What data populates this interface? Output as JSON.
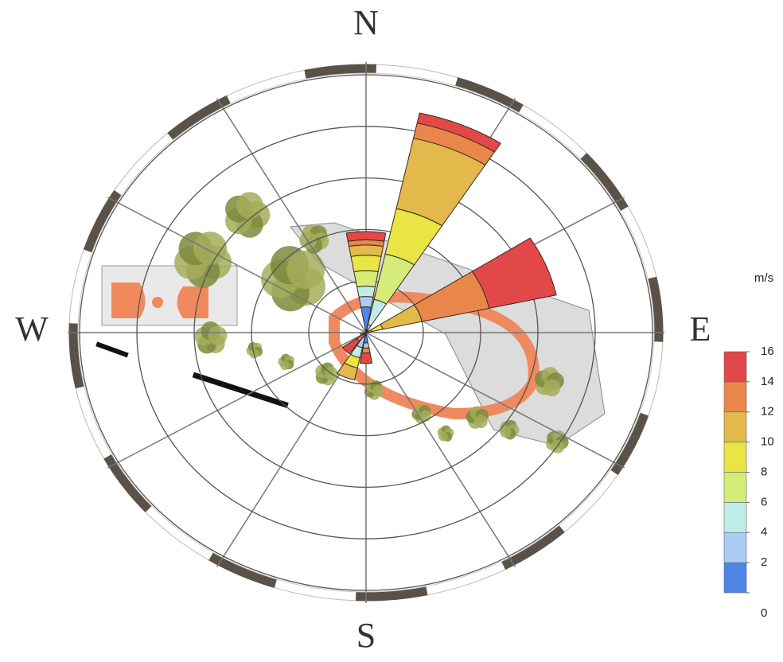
{
  "chart_data": {
    "type": "windrose",
    "categories": [
      "N",
      null,
      null,
      null,
      "E",
      null,
      null,
      null,
      "S",
      null,
      null,
      null,
      "W",
      null,
      null,
      null
    ],
    "series": [
      {
        "color": "#4f86e8",
        "values": [
          2.5,
          0.3,
          0,
          0,
          0,
          0,
          0,
          0,
          1,
          0.5,
          0,
          0.5,
          0,
          0,
          0,
          0
        ]
      },
      {
        "color": "#a9cdf5",
        "values": [
          1,
          0.5,
          0,
          0,
          0,
          0,
          0,
          0,
          0.5,
          1,
          0,
          0,
          0,
          0,
          0,
          0
        ]
      },
      {
        "color": "#bfece6",
        "values": [
          1,
          2.5,
          0,
          0,
          0,
          0,
          0,
          0,
          0,
          1,
          0,
          0,
          0,
          0,
          0,
          0
        ]
      },
      {
        "color": "#d5ec78",
        "values": [
          1.5,
          4.5,
          0,
          0.5,
          0,
          0,
          0,
          0,
          0,
          0,
          0,
          0,
          0,
          0,
          0,
          0
        ]
      },
      {
        "color": "#e8e545",
        "values": [
          1.5,
          4.5,
          0,
          1,
          0,
          0,
          0,
          0,
          0,
          1,
          0,
          0,
          0,
          0,
          0,
          0
        ]
      },
      {
        "color": "#e2b94a",
        "values": [
          1,
          7,
          0,
          3.5,
          0,
          0,
          0,
          0,
          0,
          1.2,
          0,
          0,
          0,
          0,
          0,
          0
        ]
      },
      {
        "color": "#e9874a",
        "values": [
          0.5,
          1.5,
          0,
          6,
          0,
          0,
          0,
          0,
          0.5,
          0,
          1,
          0,
          0,
          0,
          0,
          0
        ]
      },
      {
        "color": "#e34848",
        "values": [
          0.8,
          1,
          0,
          6,
          0,
          0,
          0,
          0,
          1,
          0,
          1.5,
          0,
          0,
          0,
          0,
          0
        ]
      }
    ],
    "rlim": [
      0,
      25
    ],
    "rticks": [
      5,
      10,
      15,
      20,
      25
    ],
    "legend_title": "m/s",
    "legend_ticks": [
      0,
      2,
      4,
      6,
      8,
      10,
      12,
      14,
      16
    ]
  }
}
